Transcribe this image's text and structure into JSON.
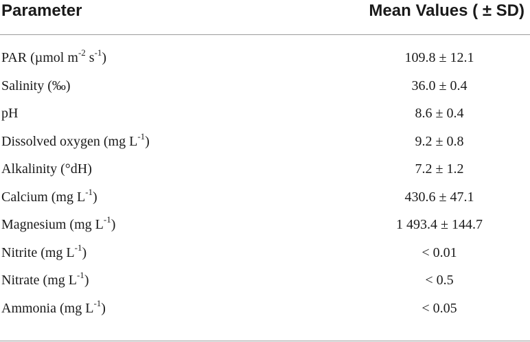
{
  "table": {
    "header": {
      "parameter": "Parameter",
      "mean_values": "Mean Values ( ± SD)"
    },
    "rows": [
      {
        "parameter": "PAR (µmol m",
        "sup1": "-2",
        "mid": " s",
        "sup2": "-1",
        "tail": ")",
        "value": "109.8 ± 12.1"
      },
      {
        "parameter": "Salinity (‰)",
        "value": "36.0 ± 0.4"
      },
      {
        "parameter": "pH",
        "value": "8.6 ± 0.4"
      },
      {
        "parameter": "Dissolved oxygen (mg L",
        "sup1": "-1",
        "tail": ")",
        "value": "9.2 ± 0.8"
      },
      {
        "parameter": "Alkalinity (°dH)",
        "value": "7.2 ± 1.2"
      },
      {
        "parameter": "Calcium (mg L",
        "sup1": "-1",
        "tail": ")",
        "value": "430.6 ± 47.1"
      },
      {
        "parameter": "Magnesium (mg L",
        "sup1": "-1",
        "tail": ")",
        "value": "1 493.4 ± 144.7"
      },
      {
        "parameter": "Nitrite (mg L",
        "sup1": "-1",
        "tail": ")",
        "value": "< 0.01"
      },
      {
        "parameter": "Nitrate (mg L",
        "sup1": "-1",
        "tail": ")",
        "value": "< 0.5"
      },
      {
        "parameter": "Ammonia (mg L",
        "sup1": "-1",
        "tail": ")",
        "value": "< 0.05"
      }
    ]
  }
}
